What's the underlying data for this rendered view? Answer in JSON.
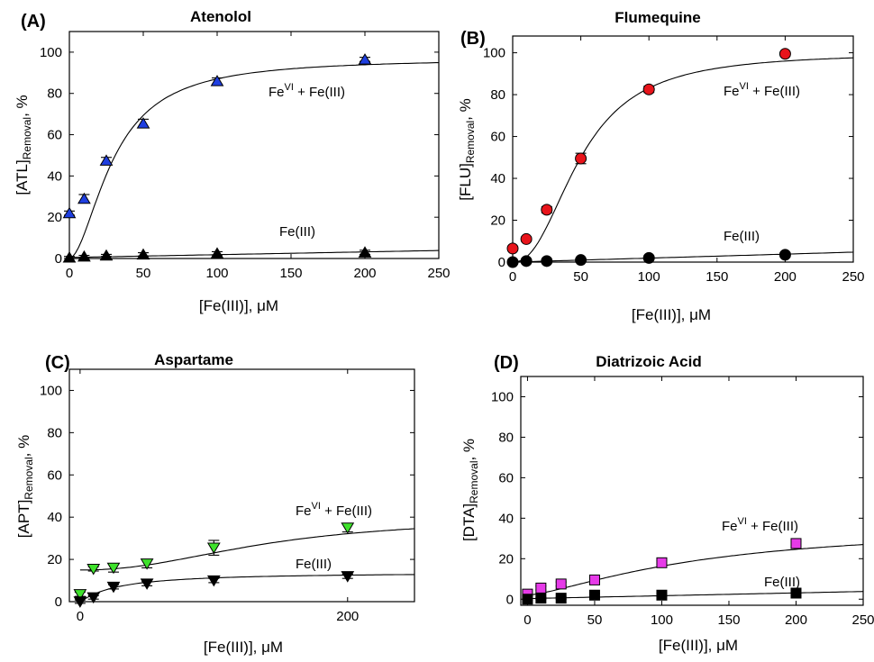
{
  "chart_data": [
    {
      "type": "scatter",
      "panel": "(A)",
      "title": "Atenolol",
      "xlabel": "[Fe(III)], μM",
      "ylabel_main": "[ATL]",
      "ylabel_sub": "Removal",
      "ylabel_tail": ", %",
      "xlim": [
        0,
        250
      ],
      "ylim": [
        0,
        110
      ],
      "xticks": [
        0,
        50,
        100,
        150,
        200,
        250
      ],
      "yticks": [
        0,
        20,
        40,
        60,
        80,
        100
      ],
      "grid": false,
      "series": [
        {
          "label": "Fe",
          "label_sup": "VI",
          "label_tail": " + Fe(III)",
          "marker": "triangle-up",
          "color": "#1f3fe0",
          "x": [
            0,
            10,
            25,
            50,
            100,
            200
          ],
          "y": [
            22,
            29,
            47.5,
            65.5,
            86,
            96.5
          ],
          "err": [
            1,
            2,
            1.5,
            2,
            1.5,
            1
          ],
          "fit": "sigmoid",
          "fit_params": {
            "a": 97,
            "x0": 30,
            "n": 1.8
          }
        },
        {
          "label": "Fe(III)",
          "marker": "triangle-up",
          "color": "#000000",
          "x": [
            0,
            10,
            25,
            50,
            100,
            200
          ],
          "y": [
            0.5,
            1,
            1.5,
            2,
            2.5,
            3
          ],
          "err": [
            0.5,
            0.5,
            0.5,
            0.8,
            0.8,
            1
          ],
          "fit": "linear",
          "fit_params": {
            "a": 0.5,
            "b": 0.0135
          }
        }
      ]
    },
    {
      "type": "scatter",
      "panel": "(B)",
      "title": "Flumequine",
      "xlabel": "[Fe(III)], μM",
      "ylabel_main": "[FLU]",
      "ylabel_sub": "Removal",
      "ylabel_tail": ", %",
      "xlim": [
        0,
        250
      ],
      "ylim": [
        0,
        108
      ],
      "xticks": [
        0,
        50,
        100,
        150,
        200,
        250
      ],
      "yticks": [
        0,
        20,
        40,
        60,
        80,
        100
      ],
      "grid": false,
      "series": [
        {
          "label": "Fe",
          "label_sup": "VI",
          "label_tail": " + Fe(III)",
          "marker": "circle",
          "color": "#e8141b",
          "x": [
            0,
            10,
            25,
            50,
            100,
            200
          ],
          "y": [
            6.5,
            11,
            25,
            49.5,
            82.5,
            99.5
          ],
          "err": [
            1,
            1,
            1.5,
            2.5,
            1.5,
            1
          ],
          "fit": "sigmoid",
          "fit_params": {
            "a": 100,
            "x0": 50,
            "n": 2.3
          }
        },
        {
          "label": "Fe(III)",
          "marker": "circle",
          "color": "#000000",
          "x": [
            0,
            10,
            25,
            50,
            100,
            200
          ],
          "y": [
            0,
            0.5,
            0.5,
            1,
            2,
            3.5
          ],
          "err": [
            0.5,
            0.5,
            0.5,
            0.5,
            0.8,
            1
          ],
          "fit": "linear",
          "fit_params": {
            "a": 0,
            "b": 0.019
          }
        }
      ]
    },
    {
      "type": "scatter",
      "panel": "(C)",
      "title": "Aspartame",
      "xlabel": "[Fe(III)], μM",
      "ylabel_main": "[APT]",
      "ylabel_sub": "Removal",
      "ylabel_tail": ", %",
      "xlim": [
        -8,
        250
      ],
      "ylim": [
        0,
        110
      ],
      "xticks": [
        0,
        200
      ],
      "yticks": [
        0,
        20,
        40,
        60,
        80,
        100
      ],
      "grid": false,
      "series": [
        {
          "label": "Fe",
          "label_sup": "VI",
          "label_tail": " + Fe(III)",
          "marker": "triangle-down",
          "color": "#3ee22b",
          "x": [
            0,
            10,
            25,
            50,
            100,
            200
          ],
          "y": [
            3.5,
            15.5,
            16,
            18,
            25.5,
            35
          ],
          "err": [
            1,
            1,
            2,
            2,
            3.5,
            2
          ],
          "fit": "hill-offset",
          "fit_params": {
            "b": 15,
            "a": 25,
            "x0": 140,
            "n": 2.2
          }
        },
        {
          "label": "Fe(III)",
          "marker": "triangle-down",
          "color": "#000000",
          "x": [
            0,
            10,
            25,
            50,
            100,
            200
          ],
          "y": [
            0,
            2,
            7,
            8.5,
            10,
            12
          ],
          "err": [
            0.8,
            0.8,
            1,
            1,
            1,
            1
          ],
          "fit": "hill",
          "fit_params": {
            "a": 14,
            "x0": 28,
            "n": 1.1
          }
        }
      ]
    },
    {
      "type": "scatter",
      "panel": "(D)",
      "title": "Diatrizoic Acid",
      "xlabel": "[Fe(III)], μM",
      "ylabel_main": "[DTA]",
      "ylabel_sub": "Removal",
      "ylabel_tail": ", %",
      "xlim": [
        -5,
        250
      ],
      "ylim": [
        -3,
        110
      ],
      "xticks": [
        0,
        50,
        100,
        150,
        200,
        250
      ],
      "yticks": [
        0,
        20,
        40,
        60,
        80,
        100
      ],
      "grid": false,
      "series": [
        {
          "label": "Fe",
          "label_sup": "VI",
          "label_tail": " + Fe(III)",
          "marker": "square",
          "color": "#e63ae8",
          "x": [
            0,
            10,
            25,
            50,
            100,
            200
          ],
          "y": [
            2.5,
            5.5,
            7.5,
            9.5,
            18,
            27.5
          ],
          "err": [
            0.8,
            1,
            1,
            1,
            1,
            1.5
          ],
          "fit": "hill-offset",
          "fit_params": {
            "b": 2,
            "a": 35,
            "x0": 130,
            "n": 1.4
          }
        },
        {
          "label": "Fe(III)",
          "marker": "square",
          "color": "#000000",
          "x": [
            0,
            10,
            25,
            50,
            100,
            200
          ],
          "y": [
            0,
            0.5,
            0.5,
            2,
            2,
            3
          ],
          "err": [
            0.5,
            0.5,
            0.5,
            0.8,
            0.8,
            1
          ],
          "fit": "linear",
          "fit_params": {
            "a": 0.3,
            "b": 0.014
          }
        }
      ]
    }
  ]
}
